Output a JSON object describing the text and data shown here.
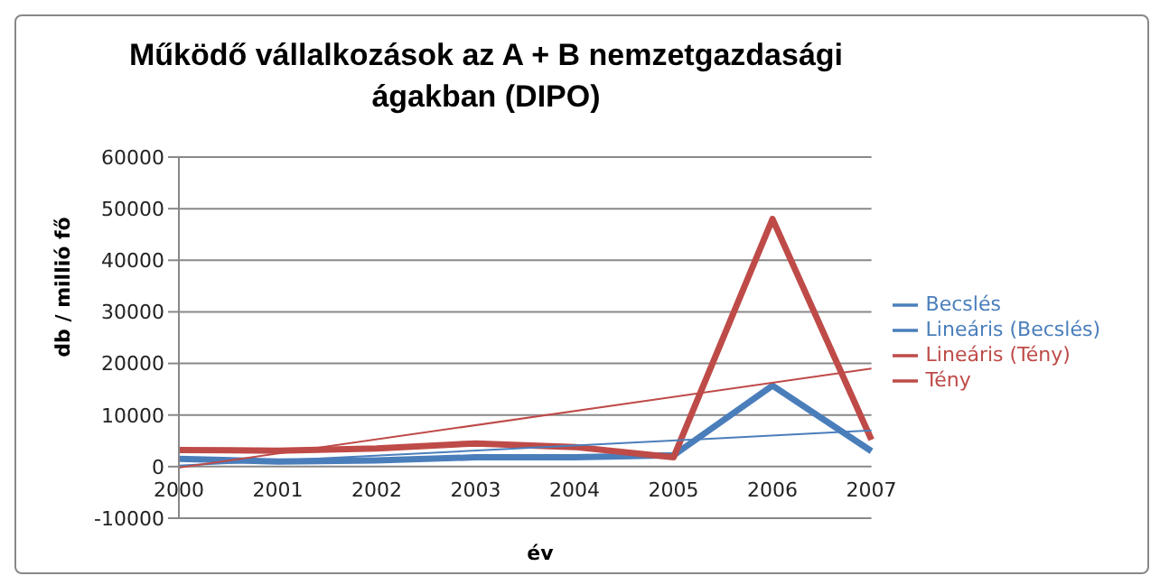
{
  "chart_data": {
    "type": "line",
    "title": "Működő vállalkozások  az A + B nemzetgazdasági ágakban (DIPO)",
    "xlabel": "év",
    "ylabel": "db / millió fő",
    "categories": [
      "2000",
      "2001",
      "2002",
      "2003",
      "2004",
      "2005",
      "2006",
      "2007"
    ],
    "series": [
      {
        "name": "Becslés",
        "color": "#4a7ebb",
        "values": [
          1500,
          1000,
          1200,
          1800,
          1800,
          2200,
          15700,
          3000
        ]
      },
      {
        "name": "Tény",
        "color": "#be4b48",
        "values": [
          3200,
          3100,
          3500,
          4500,
          3800,
          1800,
          48000,
          5200
        ]
      },
      {
        "name": "Lineáris (Becslés)",
        "color": "#4a7ebb",
        "values": [
          200,
          null,
          null,
          null,
          null,
          null,
          null,
          7000
        ]
      },
      {
        "name": "Lineáris (Tény)",
        "color": "#be4b48",
        "values": [
          -200,
          null,
          null,
          null,
          null,
          null,
          null,
          19000
        ]
      }
    ],
    "ylim": [
      -10000,
      60000
    ],
    "yticks": [
      -10000,
      0,
      10000,
      20000,
      30000,
      40000,
      50000,
      60000
    ],
    "grid": "y",
    "legend": "right",
    "marker": "none",
    "line_style": "solid"
  }
}
